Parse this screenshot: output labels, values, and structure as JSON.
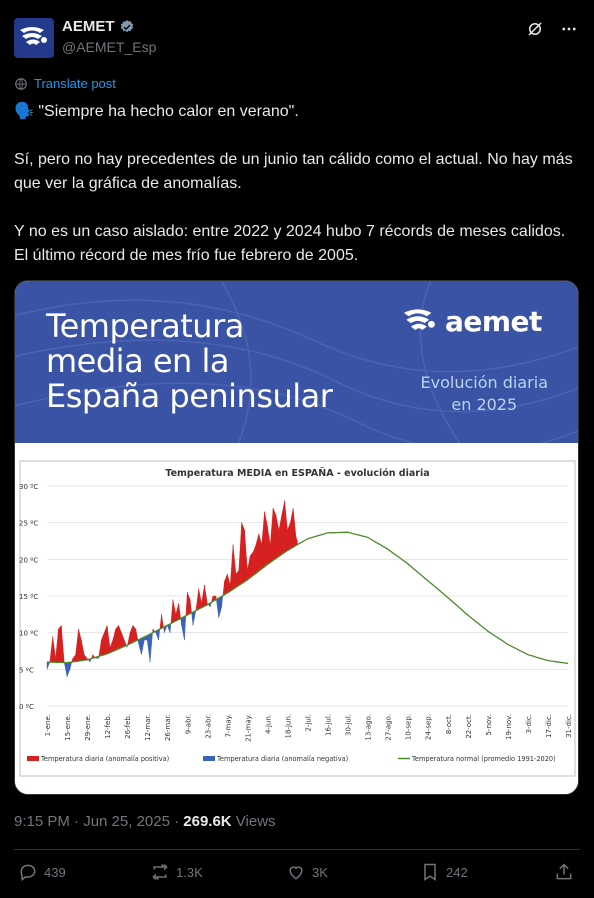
{
  "account": {
    "name": "AEMET",
    "handle": "@AEMET_Esp",
    "verified": true
  },
  "header_icons": [
    "grok-icon",
    "more-icon"
  ],
  "translate_label": "Translate post",
  "tweet": {
    "line1": "\"Siempre ha hecho calor en verano\".",
    "para2": "Sí, pero no hay precedentes de un junio tan cálido como el actual. No hay más que ver la gráfica de anomalías.",
    "para3": "Y no es un caso aislado: entre 2022 y 2024 hubo 7 récords de meses calidos. El último récord de mes frío fue febrero de 2005."
  },
  "media": {
    "banner_title": [
      "Temperatura",
      "media en la",
      "España peninsular"
    ],
    "logo_text": "aemet",
    "banner_sub": [
      "Evolución diaria",
      "en 2025"
    ]
  },
  "meta": {
    "time": "9:15 PM · Jun 25, 2025 · ",
    "views": "269.6K",
    "views_label": " Views"
  },
  "actions": {
    "replies": "439",
    "reposts": "1.3K",
    "likes": "3K",
    "bookmarks": "242"
  },
  "colors": {
    "accent": "#1d9bf0",
    "banner": "#3a53a5",
    "positive": "#d62020",
    "negative": "#3a62b8",
    "normal": "#4b8a2a"
  },
  "chart_data": {
    "type": "area",
    "title": "Temperatura MEDIA en ESPAÑA - evolución diaria",
    "ylim": [
      0,
      30
    ],
    "yticks": [
      "0 ºC",
      "5 ºC",
      "10 ºC",
      "15 ºC",
      "20 ºC",
      "25 ºC",
      "30 ºC"
    ],
    "yvalues": [
      0,
      5,
      10,
      15,
      20,
      25,
      30
    ],
    "xlim": [
      1,
      365
    ],
    "xticks": [
      {
        "label": "1-ene.",
        "day": 1
      },
      {
        "label": "15-ene.",
        "day": 15
      },
      {
        "label": "29-ene.",
        "day": 29
      },
      {
        "label": "12-feb.",
        "day": 43
      },
      {
        "label": "26-feb.",
        "day": 57
      },
      {
        "label": "12-mar.",
        "day": 71
      },
      {
        "label": "26-mar.",
        "day": 85
      },
      {
        "label": "9-abr.",
        "day": 99
      },
      {
        "label": "23-abr.",
        "day": 113
      },
      {
        "label": "7-may.",
        "day": 127
      },
      {
        "label": "21-may.",
        "day": 141
      },
      {
        "label": "4-jun.",
        "day": 155
      },
      {
        "label": "18-jun.",
        "day": 169
      },
      {
        "label": "2-jul.",
        "day": 183
      },
      {
        "label": "16-jul.",
        "day": 197
      },
      {
        "label": "30-jul.",
        "day": 211
      },
      {
        "label": "13-ago.",
        "day": 225
      },
      {
        "label": "27-ago.",
        "day": 239
      },
      {
        "label": "10-sep.",
        "day": 253
      },
      {
        "label": "24-sep.",
        "day": 267
      },
      {
        "label": "8-oct.",
        "day": 281
      },
      {
        "label": "22-oct.",
        "day": 295
      },
      {
        "label": "5-nov.",
        "day": 309
      },
      {
        "label": "19-nov.",
        "day": 323
      },
      {
        "label": "3-dic.",
        "day": 337
      },
      {
        "label": "17-dic.",
        "day": 351
      },
      {
        "label": "31-dic.",
        "day": 365
      }
    ],
    "normal": {
      "name": "Temperatura normal (promedio 1991-2020)",
      "x": [
        1,
        15,
        29,
        43,
        57,
        71,
        85,
        99,
        113,
        127,
        141,
        155,
        169,
        183,
        197,
        211,
        225,
        239,
        253,
        267,
        281,
        295,
        309,
        323,
        337,
        351,
        365
      ],
      "y": [
        6.0,
        5.9,
        6.3,
        7.1,
        8.3,
        9.6,
        11.0,
        12.4,
        13.8,
        15.4,
        17.2,
        19.3,
        21.2,
        22.8,
        23.6,
        23.7,
        23.0,
        21.4,
        19.4,
        17.1,
        14.8,
        12.4,
        10.2,
        8.4,
        7.0,
        6.2,
        5.8
      ]
    },
    "daily": {
      "name": "Temperatura diaria",
      "x": [
        1,
        3,
        5,
        7,
        9,
        11,
        13,
        15,
        17,
        19,
        21,
        23,
        25,
        27,
        29,
        31,
        33,
        35,
        37,
        39,
        41,
        43,
        45,
        47,
        49,
        51,
        53,
        55,
        57,
        59,
        61,
        63,
        65,
        67,
        69,
        71,
        73,
        75,
        77,
        79,
        81,
        83,
        85,
        87,
        89,
        91,
        93,
        95,
        97,
        99,
        101,
        103,
        105,
        107,
        109,
        111,
        113,
        115,
        117,
        119,
        121,
        123,
        125,
        127,
        129,
        131,
        133,
        135,
        137,
        139,
        141,
        143,
        145,
        147,
        149,
        151,
        153,
        155,
        157,
        159,
        161,
        163,
        165,
        167,
        169,
        171,
        173,
        175,
        176
      ],
      "y": [
        5.0,
        6.0,
        9.5,
        6.5,
        10.5,
        11.0,
        6.0,
        4.0,
        5.0,
        6.5,
        7.0,
        10.5,
        9.0,
        7.0,
        6.5,
        6.0,
        7.0,
        6.5,
        6.5,
        9.0,
        10.0,
        11.0,
        8.0,
        9.0,
        10.5,
        11.0,
        10.0,
        9.0,
        8.0,
        10.0,
        11.0,
        10.5,
        8.5,
        7.0,
        9.0,
        9.0,
        6.0,
        10.5,
        10.0,
        9.0,
        12.5,
        10.0,
        11.0,
        10.0,
        14.5,
        12.5,
        14.0,
        11.0,
        9.0,
        15.5,
        14.5,
        11.0,
        13.0,
        16.0,
        14.0,
        16.5,
        14.0,
        13.5,
        15.0,
        15.0,
        12.0,
        13.5,
        17.0,
        18.0,
        16.5,
        22.0,
        18.0,
        18.5,
        25.0,
        24.0,
        18.5,
        20.5,
        21.0,
        22.0,
        23.5,
        22.0,
        26.5,
        24.5,
        22.0,
        27.0,
        26.0,
        24.0,
        26.0,
        28.0,
        24.0,
        25.0,
        27.0,
        23.0,
        22.5
      ]
    },
    "legend": [
      {
        "label": "Temperatura diaria (anomalía positiva)",
        "color": "#d62020"
      },
      {
        "label": "Temperatura diaria (anomalía negativa)",
        "color": "#3a62b8"
      },
      {
        "label": "Temperatura normal (promedio 1991-2020)",
        "color": "#4b8a2a"
      }
    ],
    "legend_placement": "bottom",
    "grid": true
  }
}
